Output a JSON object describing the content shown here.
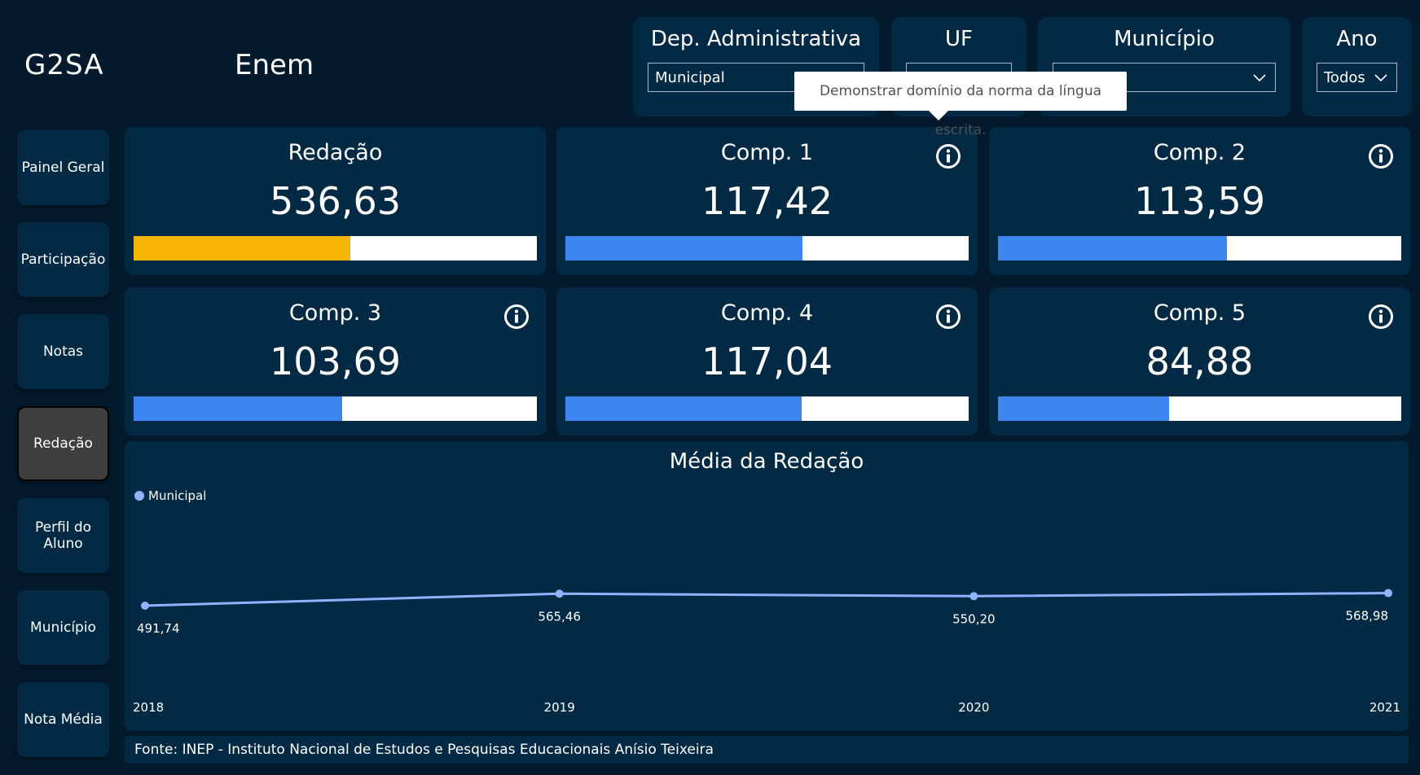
{
  "header": {
    "brand": "G2SA",
    "page_title": "Enem"
  },
  "filters": [
    {
      "label": "Dep. Administrativa",
      "value": "Municipal"
    },
    {
      "label": "UF",
      "value": ""
    },
    {
      "label": "Município",
      "value": ""
    },
    {
      "label": "Ano",
      "value": "Todos"
    }
  ],
  "tooltip": {
    "text": "Demonstrar domínio da norma da língua escrita."
  },
  "nav": [
    {
      "label": "Painel Geral",
      "active": false
    },
    {
      "label": "Participação",
      "active": false
    },
    {
      "label": "Notas",
      "active": false
    },
    {
      "label": "Redação",
      "active": true
    },
    {
      "label": "Perfil do Aluno",
      "active": false
    },
    {
      "label": "Município",
      "active": false
    },
    {
      "label": "Nota Média",
      "active": false
    }
  ],
  "cards": [
    {
      "title": "Redação",
      "value": "536,63",
      "fill_percent": 53.7,
      "color": "#f5b400",
      "info_icon": false
    },
    {
      "title": "Comp. 1",
      "value": "117,42",
      "fill_percent": 58.7,
      "color": "#3d85f0",
      "info_icon": true
    },
    {
      "title": "Comp. 2",
      "value": "113,59",
      "fill_percent": 56.8,
      "color": "#3d85f0",
      "info_icon": true
    },
    {
      "title": "Comp. 3",
      "value": "103,69",
      "fill_percent": 51.8,
      "color": "#3d85f0",
      "info_icon": true
    },
    {
      "title": "Comp. 4",
      "value": "117,04",
      "fill_percent": 58.5,
      "color": "#3d85f0",
      "info_icon": true
    },
    {
      "title": "Comp. 5",
      "value": "84,88",
      "fill_percent": 42.4,
      "color": "#3d85f0",
      "info_icon": true
    }
  ],
  "chart_data": {
    "type": "line",
    "title": "Média da Redação",
    "x": [
      "2018",
      "2019",
      "2020",
      "2021"
    ],
    "series": [
      {
        "name": "Municipal",
        "values": [
          491.74,
          565.46,
          550.2,
          568.98
        ],
        "labels": [
          "491,74",
          "565,46",
          "550,20",
          "568,98"
        ],
        "color": "#8fb4ff"
      }
    ],
    "xlabel": "",
    "ylabel": "",
    "ylim": [
      0,
      1000
    ],
    "grid": false,
    "legend": "top-left"
  },
  "footer": {
    "source": "Fonte: INEP - Instituto Nacional de Estudos e Pesquisas Educacionais Anísio Teixeira"
  },
  "icons": {
    "info": "info-circle-icon",
    "dropdown": "chevron-down-icon"
  }
}
